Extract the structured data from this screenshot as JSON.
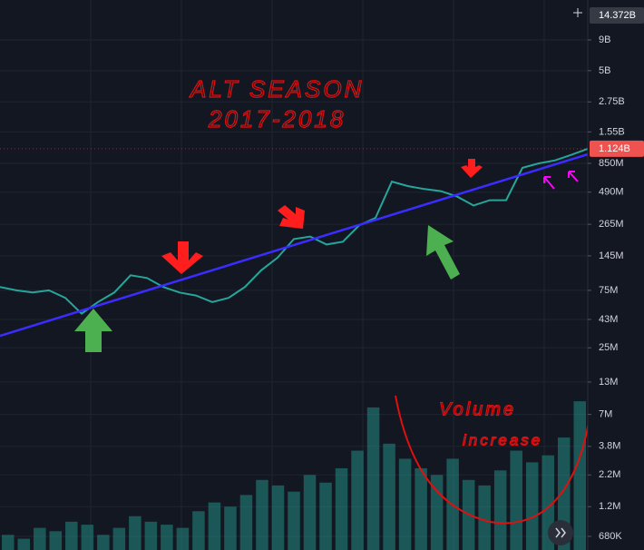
{
  "chart_data": {
    "type": "line",
    "title": "ALT SEASON",
    "subtitle": "2017-2018",
    "annotations": [
      "Volume",
      "increase"
    ],
    "log_scale": true,
    "grid": true,
    "color": "#26a69a",
    "volume_color": "#26a69a",
    "ylim": [
      524000,
      19300000000
    ],
    "yticks": [
      {
        "value": 9000000000,
        "label": "9B"
      },
      {
        "value": 5000000000,
        "label": "5B"
      },
      {
        "value": 2750000000,
        "label": "2.75B"
      },
      {
        "value": 1550000000,
        "label": "1.55B"
      },
      {
        "value": 850000000,
        "label": "850M"
      },
      {
        "value": 490000000,
        "label": "490M"
      },
      {
        "value": 265000000,
        "label": "265M"
      },
      {
        "value": 145000000,
        "label": "145M"
      },
      {
        "value": 75000000,
        "label": "75M"
      },
      {
        "value": 43000000,
        "label": "43M"
      },
      {
        "value": 25000000,
        "label": "25M"
      },
      {
        "value": 13000000,
        "label": "13M"
      },
      {
        "value": 7000000,
        "label": "7M"
      },
      {
        "value": 3800000,
        "label": "3.8M"
      },
      {
        "value": 2200000,
        "label": "2.2M"
      },
      {
        "value": 1200000,
        "label": "1.2M"
      },
      {
        "value": 680000,
        "label": "680K"
      }
    ],
    "last_value": {
      "value": 1124000000,
      "label": "1.124B"
    },
    "crosshair_value": {
      "value": 14372000000,
      "label": "14.372B"
    },
    "values": [
      80000000,
      75000000,
      72000000,
      75000000,
      65000000,
      48000000,
      60000000,
      72000000,
      100000000,
      95000000,
      80000000,
      72000000,
      68000000,
      60000000,
      65000000,
      80000000,
      110000000,
      140000000,
      200000000,
      210000000,
      180000000,
      190000000,
      260000000,
      300000000,
      600000000,
      550000000,
      520000000,
      500000000,
      450000000,
      380000000,
      420000000,
      420000000,
      780000000,
      850000000,
      900000000,
      1000000000,
      1124000000
    ],
    "volume": [
      700000,
      650000,
      800000,
      750000,
      900000,
      850000,
      700000,
      800000,
      1000000,
      900000,
      850000,
      800000,
      1100000,
      1300000,
      1200000,
      1500000,
      2000000,
      1800000,
      1600000,
      2200000,
      1900000,
      2500000,
      3500000,
      8000000,
      4000000,
      3000000,
      2500000,
      2200000,
      3000000,
      2000000,
      1800000,
      2400000,
      3500000,
      2800000,
      3200000,
      4500000,
      9000000
    ]
  }
}
